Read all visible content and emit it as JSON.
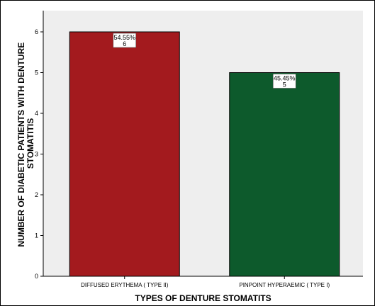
{
  "chart_data": {
    "type": "bar",
    "categories": [
      "DIFFUSED ERYTHEMA ( TYPE II)",
      "PINPOINT HYPERAEMIC ( TYPE I)"
    ],
    "values": [
      6,
      5
    ],
    "percent_labels": [
      "54.55%",
      "45.45%"
    ],
    "count_labels": [
      "6",
      "5"
    ],
    "bar_colors": [
      "#a31a1e",
      "#0d5a2c"
    ],
    "plot_background": "#eeeeee",
    "title": "",
    "xlabel": "TYPES OF DENTURE STOMATITS",
    "ylabel_lines": [
      "NUMBER OF DIABETIC PATIENTS WITH DENTURE",
      "STOMATITIS"
    ],
    "ylim": [
      0,
      6
    ],
    "yticks": [
      0,
      1,
      2,
      3,
      4,
      5,
      6
    ],
    "grid": false
  }
}
